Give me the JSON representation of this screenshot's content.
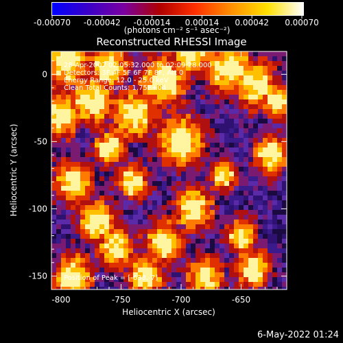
{
  "colorbar": {
    "ticks": [
      "-0.00070",
      "-0.00042",
      "-0.00014",
      "0.00014",
      "0.00042",
      "0.00070"
    ],
    "tick_values": [
      -0.0007,
      -0.00042,
      -0.00014,
      0.00014,
      0.00042,
      0.0007
    ],
    "range": [
      -0.0007,
      0.0007
    ],
    "units": "(photons cm⁻² s⁻¹ asec⁻²)",
    "colors": [
      "#0000ff",
      "#3a00c8",
      "#7a00a0",
      "#b00000",
      "#ff3000",
      "#ff9000",
      "#ffe000",
      "#ffffff"
    ]
  },
  "chart_data": {
    "type": "heatmap",
    "title": "Reconstructed RHESSI Image",
    "xlabel": "Heliocentric X (arcsec)",
    "ylabel": "Heliocentric Y (arcsec)",
    "xlim": [
      -808,
      -612
    ],
    "ylim": [
      -160,
      17
    ],
    "xticks": [
      -800,
      -750,
      -700,
      -650
    ],
    "xtick_labels": [
      "-800",
      "-750",
      "-700",
      "-650"
    ],
    "yticks": [
      -150,
      -100,
      -50,
      0
    ],
    "ytick_labels": [
      "-150",
      "-100",
      "-50",
      "0"
    ],
    "annotations": [
      "28-Apr-2007 02:05:32.000 to 02:09:28.000",
      "Detectors: 3F 4F 5F 6F 7F 8F, Att 0",
      "Energy Range: 12.0 - 25.0 keV",
      "Clean     Total Counts: 1.75E+04"
    ],
    "peak_annotation": "Position of Peak = [-638,-7]",
    "peak_position": [
      -638,
      -7
    ]
  },
  "footer": {
    "timestamp": "6-May-2022 01:24"
  }
}
